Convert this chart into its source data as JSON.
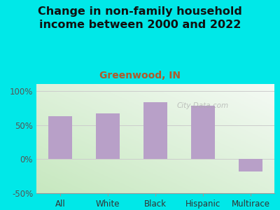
{
  "title": "Change in non-family household\nincome between 2000 and 2022",
  "subtitle": "Greenwood, IN",
  "categories": [
    "All",
    "White",
    "Black",
    "Hispanic",
    "Multirace"
  ],
  "values": [
    63,
    67,
    83,
    78,
    -18
  ],
  "bar_color": "#b8a0c8",
  "title_fontsize": 11.5,
  "subtitle_fontsize": 10,
  "subtitle_color": "#b05a2a",
  "title_color": "#111111",
  "background_outer": "#00e8e8",
  "ylim": [
    -50,
    110
  ],
  "yticks": [
    -50,
    0,
    50,
    100
  ],
  "ytick_labels": [
    "-50%",
    "0%",
    "50%",
    "100%"
  ],
  "watermark": "City-Data.com",
  "xlabel_fontsize": 8.5,
  "ylabel_fontsize": 8.5
}
